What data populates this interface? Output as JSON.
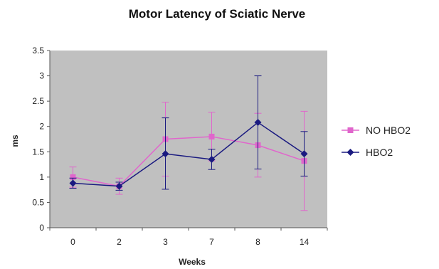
{
  "chart_data": {
    "type": "line",
    "title": "Motor Latency of Sciatic Nerve",
    "xlabel": "Weeks",
    "ylabel": "ms",
    "categories": [
      "0",
      "2",
      "3",
      "7",
      "8",
      "14"
    ],
    "ylim": [
      0,
      3.5
    ],
    "yticks": [
      "0",
      "0.5",
      "1",
      "1.5",
      "2",
      "2.5",
      "3",
      "3.5"
    ],
    "grid": false,
    "legend_position": "right",
    "plot_background": "#c0c0c0",
    "series": [
      {
        "name": "NO HBO2",
        "color": "#e066cc",
        "marker": "square",
        "values": [
          1.0,
          0.82,
          1.75,
          1.8,
          1.63,
          1.32
        ],
        "err_upper": [
          1.2,
          0.98,
          2.48,
          2.28,
          2.26,
          2.3
        ],
        "err_lower": [
          0.8,
          0.66,
          1.02,
          1.32,
          1.0,
          0.34
        ]
      },
      {
        "name": "HBO2",
        "color": "#1a1a80",
        "marker": "diamond",
        "values": [
          0.88,
          0.82,
          1.46,
          1.35,
          2.08,
          1.46
        ],
        "err_upper": [
          0.98,
          0.9,
          2.17,
          1.55,
          3.0,
          1.9
        ],
        "err_lower": [
          0.78,
          0.74,
          0.76,
          1.15,
          1.16,
          1.02
        ]
      }
    ]
  }
}
